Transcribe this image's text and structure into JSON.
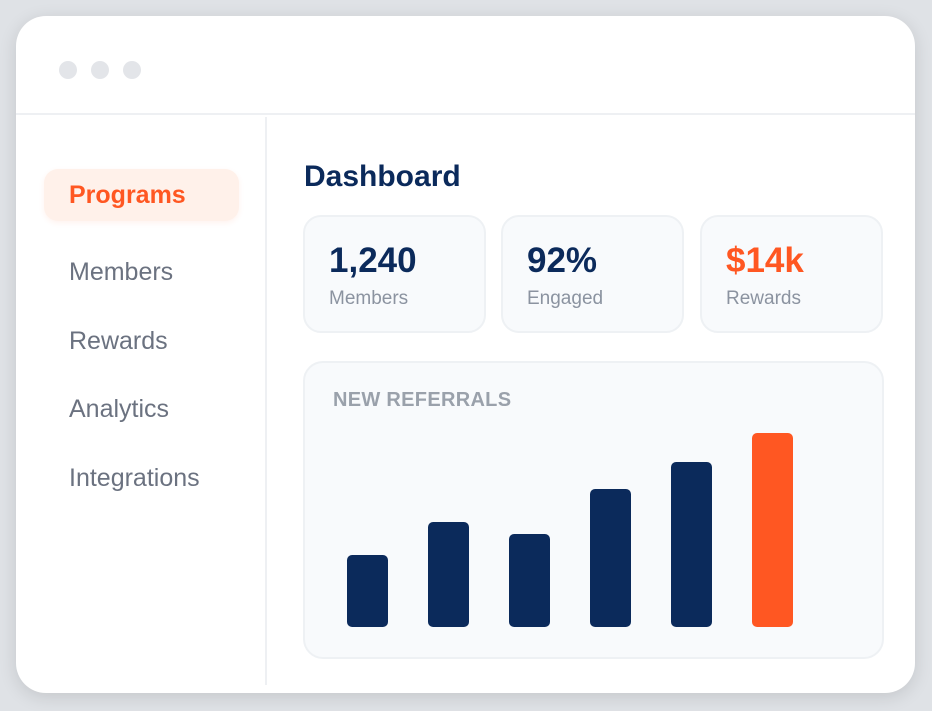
{
  "sidebar": {
    "items": [
      {
        "label": "Programs",
        "active": true
      },
      {
        "label": "Members",
        "active": false
      },
      {
        "label": "Rewards",
        "active": false
      },
      {
        "label": "Analytics",
        "active": false
      },
      {
        "label": "Integrations",
        "active": false
      }
    ]
  },
  "main": {
    "title": "Dashboard",
    "stats": [
      {
        "value": "1,240",
        "label": "Members",
        "color": "#0b2a5b"
      },
      {
        "value": "92%",
        "label": "Engaged",
        "color": "#0b2a5b"
      },
      {
        "value": "$14k",
        "label": "Rewards",
        "color": "#ff5722"
      }
    ],
    "chart": {
      "title": "NEW REFERRALS"
    }
  },
  "colors": {
    "accent": "#ff5722",
    "navy": "#0b2a5b",
    "active_bg": "#fff1ea"
  },
  "chart_data": {
    "type": "bar",
    "title": "NEW REFERRALS",
    "categories": [
      "",
      "",
      "",
      "",
      "",
      ""
    ],
    "values": [
      37,
      54,
      48,
      71,
      85,
      100
    ],
    "ylim": [
      0,
      100
    ],
    "highlight_index": 5,
    "colors": [
      "#0b2a5b",
      "#0b2a5b",
      "#0b2a5b",
      "#0b2a5b",
      "#0b2a5b",
      "#ff5722"
    ],
    "grid": false,
    "legend": "none"
  }
}
